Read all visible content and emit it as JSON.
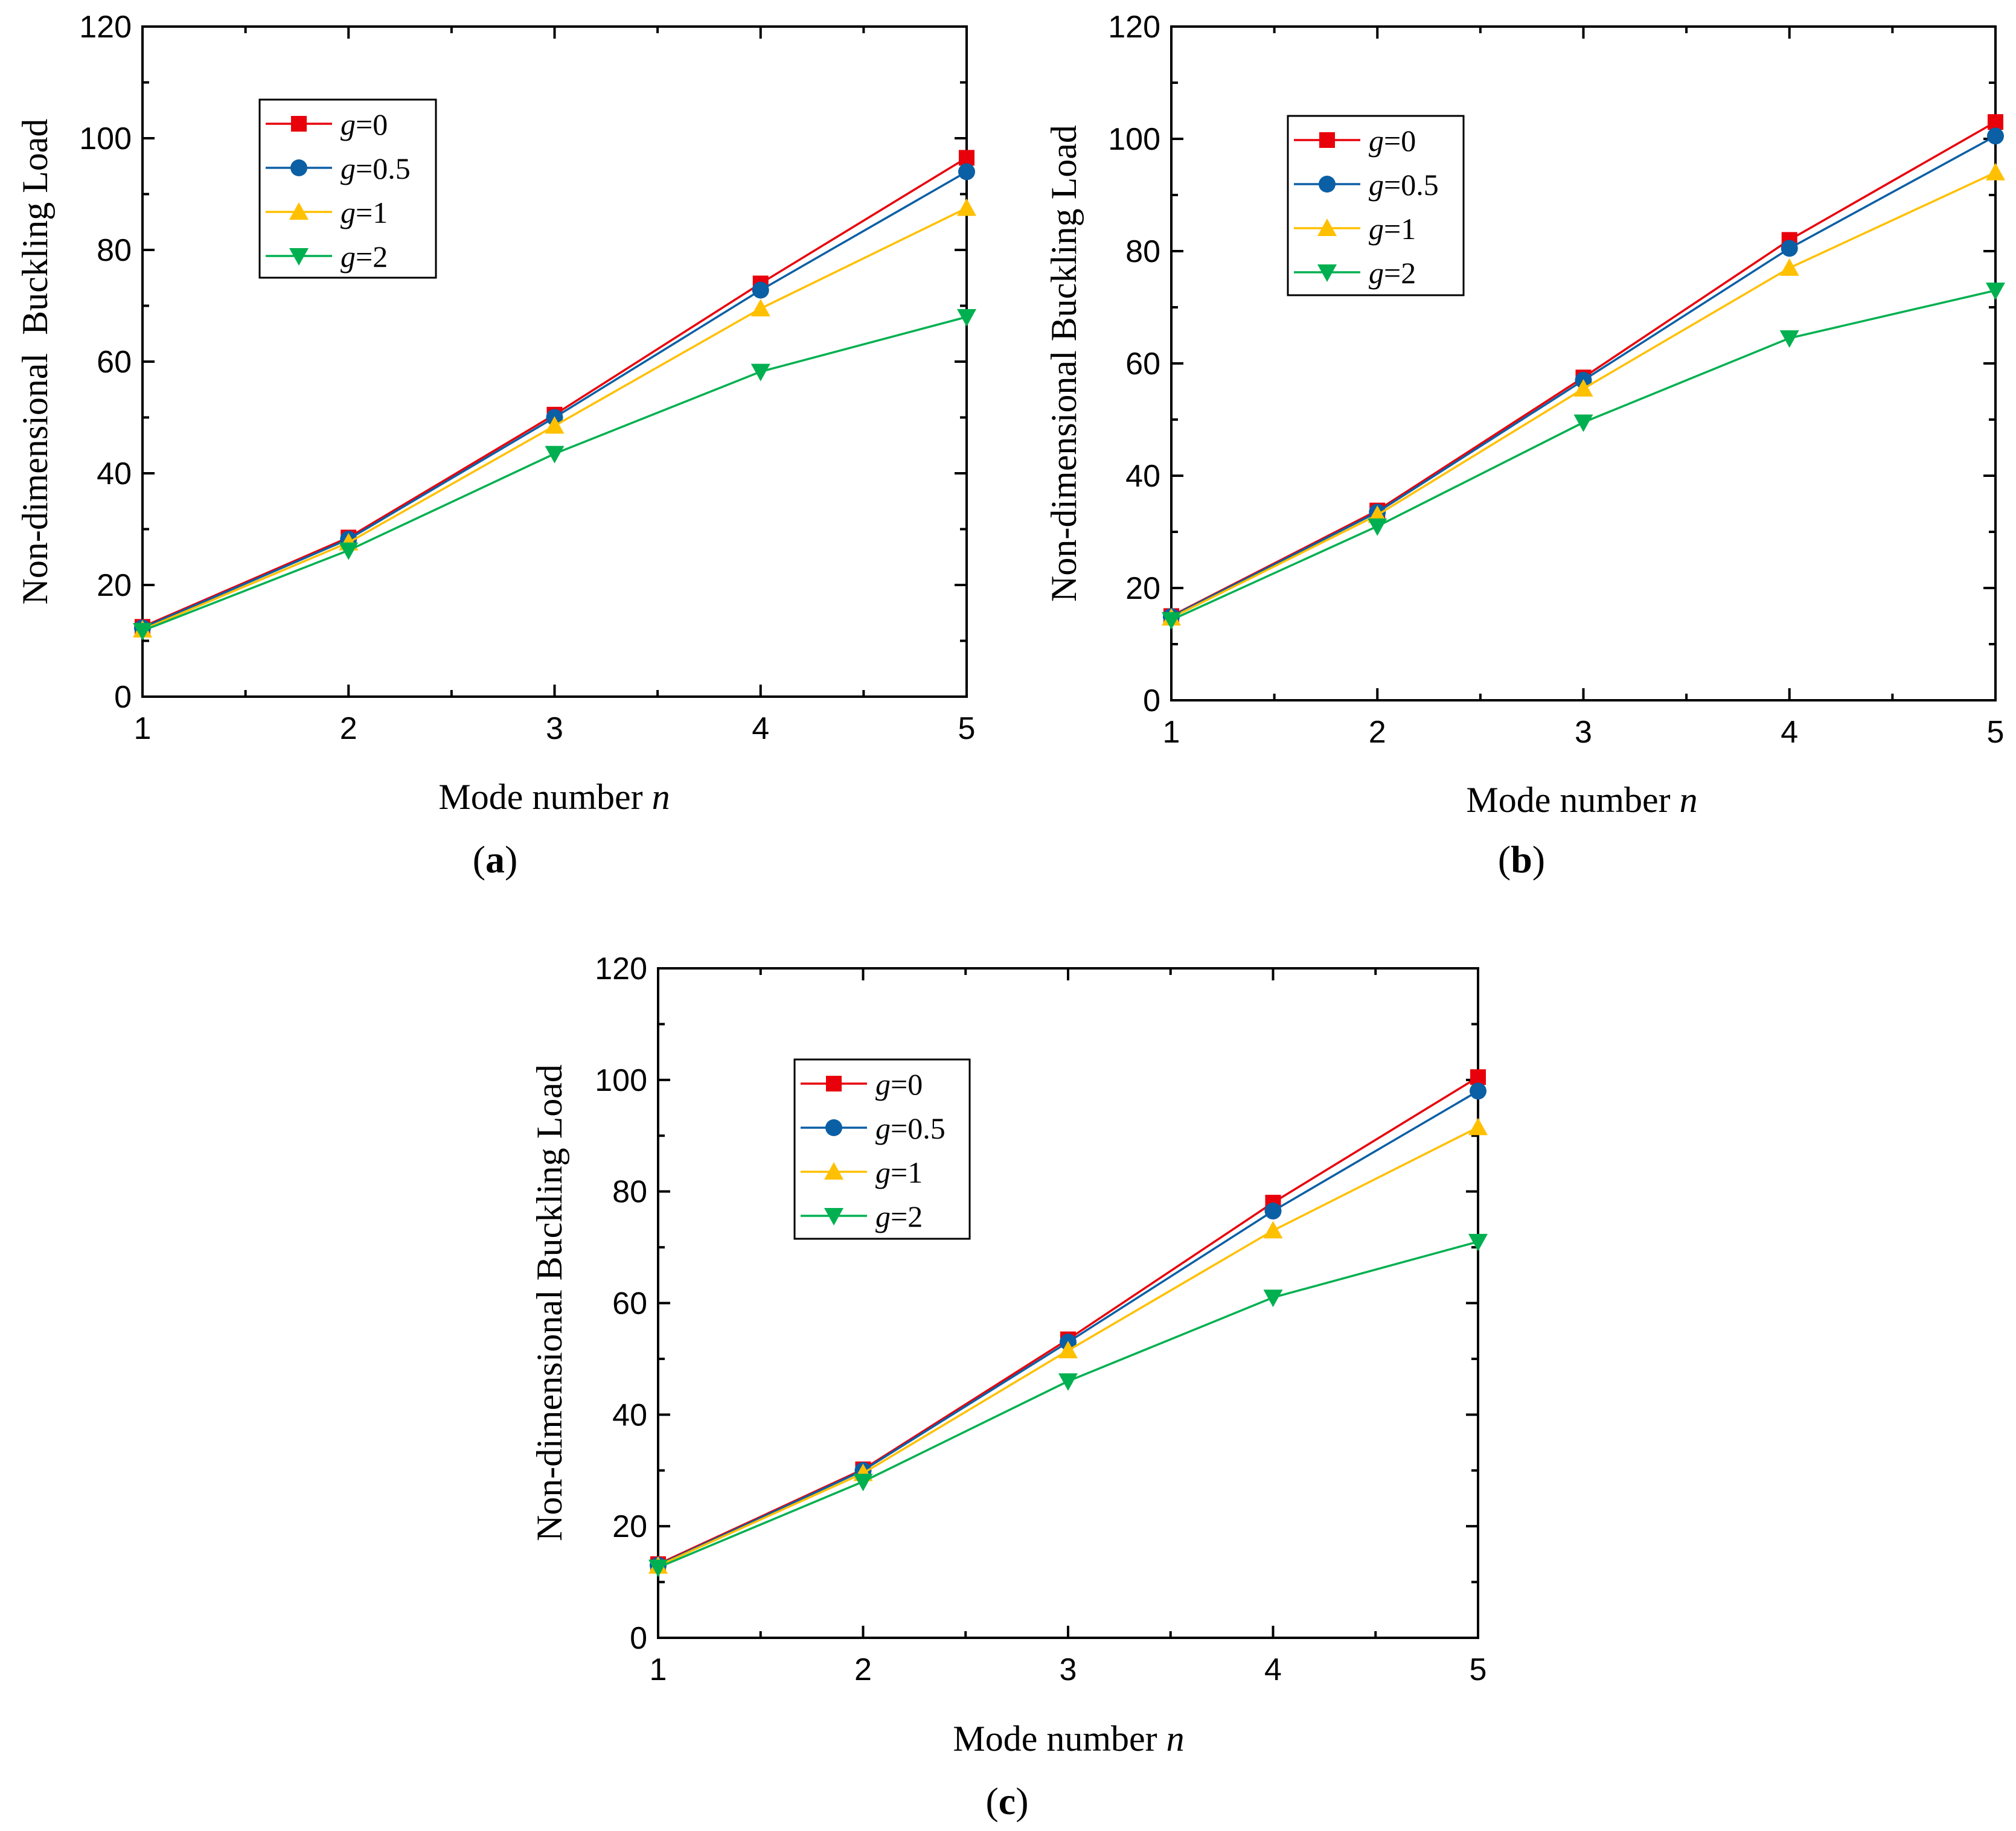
{
  "chart_data": [
    {
      "panel": "a",
      "panel_label": "(a)",
      "type": "line",
      "xlabel": "Mode number",
      "xlabel_var": "n",
      "ylabel": "Non-dimensional  Buckling Load",
      "xlim": [
        1,
        5
      ],
      "ylim": [
        0,
        120
      ],
      "x_ticks": [
        1,
        2,
        3,
        4,
        5
      ],
      "y_ticks": [
        0,
        20,
        40,
        60,
        80,
        100,
        120
      ],
      "legend_position": "top-left",
      "x": [
        1,
        2,
        3,
        4,
        5
      ],
      "series": [
        {
          "name": "g=0",
          "var": "g",
          "value": "=0",
          "color": "#e8000b",
          "marker": "square",
          "values": [
            12.5,
            28.5,
            50.5,
            74.0,
            96.5
          ]
        },
        {
          "name": "g=0.5",
          "var": "g",
          "value": "=0.5",
          "color": "#0b5fa5",
          "marker": "circle",
          "values": [
            12.3,
            28.2,
            50.0,
            72.8,
            94.0
          ]
        },
        {
          "name": "g=1",
          "var": "g",
          "value": "=1",
          "color": "#ffc000",
          "marker": "triangle-up",
          "values": [
            12.0,
            27.6,
            48.5,
            69.5,
            87.5
          ]
        },
        {
          "name": "g=2",
          "var": "g",
          "value": "=2",
          "color": "#00b050",
          "marker": "triangle-down",
          "values": [
            11.8,
            26.2,
            43.5,
            58.2,
            68.0
          ]
        }
      ]
    },
    {
      "panel": "b",
      "panel_label": "(b)",
      "type": "line",
      "xlabel": "Mode number",
      "xlabel_var": "n",
      "ylabel": "Non-dimensional Buckling Load",
      "xlim": [
        1,
        5
      ],
      "ylim": [
        0,
        120
      ],
      "x_ticks": [
        1,
        2,
        3,
        4,
        5
      ],
      "y_ticks": [
        0,
        20,
        40,
        60,
        80,
        100,
        120
      ],
      "legend_position": "top-left",
      "x": [
        1,
        2,
        3,
        4,
        5
      ],
      "series": [
        {
          "name": "g=0",
          "var": "g",
          "value": "=0",
          "color": "#e8000b",
          "marker": "square",
          "values": [
            15.0,
            33.8,
            57.5,
            82.0,
            103.0
          ]
        },
        {
          "name": "g=0.5",
          "var": "g",
          "value": "=0.5",
          "color": "#0b5fa5",
          "marker": "circle",
          "values": [
            14.9,
            33.5,
            57.0,
            80.5,
            100.5
          ]
        },
        {
          "name": "g=1",
          "var": "g",
          "value": "=1",
          "color": "#ffc000",
          "marker": "triangle-up",
          "values": [
            14.7,
            33.0,
            55.5,
            77.0,
            94.0
          ]
        },
        {
          "name": "g=2",
          "var": "g",
          "value": "=2",
          "color": "#00b050",
          "marker": "triangle-down",
          "values": [
            14.3,
            31.0,
            49.5,
            64.5,
            73.0
          ]
        }
      ]
    },
    {
      "panel": "c",
      "panel_label": "(c)",
      "type": "line",
      "xlabel": "Mode number",
      "xlabel_var": "n",
      "ylabel": "Non-dimensional Buckling Load",
      "xlim": [
        1,
        5
      ],
      "ylim": [
        0,
        120
      ],
      "x_ticks": [
        1,
        2,
        3,
        4,
        5
      ],
      "y_ticks": [
        0,
        20,
        40,
        60,
        80,
        100,
        120
      ],
      "legend_position": "top-left",
      "x": [
        1,
        2,
        3,
        4,
        5
      ],
      "series": [
        {
          "name": "g=0",
          "var": "g",
          "value": "=0",
          "color": "#e8000b",
          "marker": "square",
          "values": [
            13.2,
            30.2,
            53.5,
            78.0,
            100.5
          ]
        },
        {
          "name": "g=0.5",
          "var": "g",
          "value": "=0.5",
          "color": "#0b5fa5",
          "marker": "circle",
          "values": [
            13.0,
            30.0,
            53.0,
            76.5,
            98.0
          ]
        },
        {
          "name": "g=1",
          "var": "g",
          "value": "=1",
          "color": "#ffc000",
          "marker": "triangle-up",
          "values": [
            12.9,
            29.5,
            51.5,
            73.0,
            91.5
          ]
        },
        {
          "name": "g=2",
          "var": "g",
          "value": "=2",
          "color": "#00b050",
          "marker": "triangle-down",
          "values": [
            12.6,
            28.0,
            46.0,
            61.0,
            71.0
          ]
        }
      ]
    }
  ]
}
